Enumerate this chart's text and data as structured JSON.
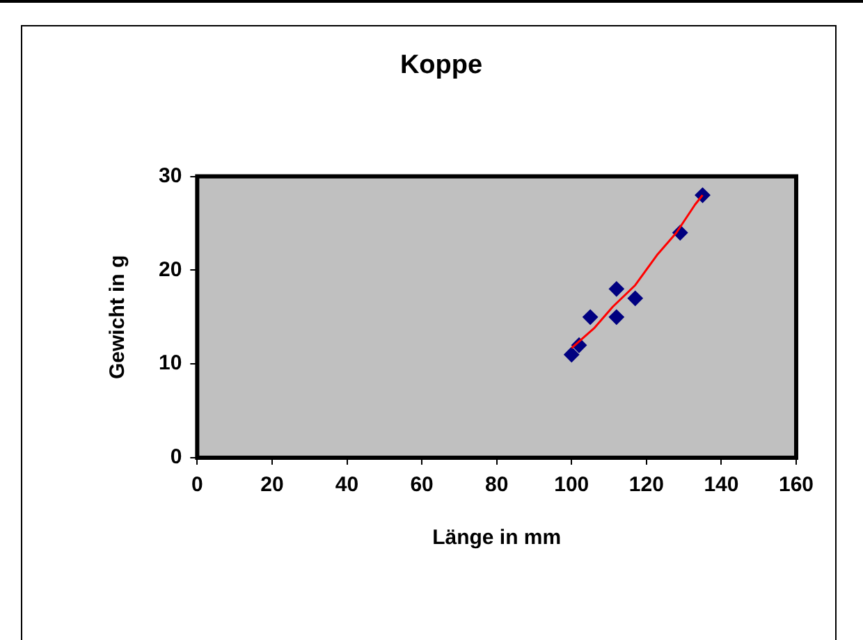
{
  "chart_data": {
    "type": "scatter",
    "title": "Koppe",
    "xlabel": "Länge in mm",
    "ylabel": "Gewicht in g",
    "series": [
      {
        "type": "scatter",
        "color": "#000080",
        "marker": "diamond",
        "x": [
          100,
          102,
          105,
          112,
          112,
          117,
          129,
          135
        ],
        "values": [
          11,
          12,
          15,
          18,
          15,
          17,
          24,
          28
        ]
      },
      {
        "type": "line",
        "color": "#ff0000",
        "marker": "none",
        "x": [
          100,
          106,
          111,
          117,
          123,
          128,
          133,
          135
        ],
        "values": [
          11.7,
          13.8,
          16.1,
          18.4,
          21.7,
          24,
          27,
          28
        ]
      }
    ],
    "xlim": [
      0,
      160
    ],
    "xticks": [
      0,
      20,
      40,
      60,
      80,
      100,
      120,
      140,
      160
    ],
    "ylim": [
      0,
      30
    ],
    "yticks": [
      0,
      10,
      20,
      30
    ],
    "grid": false,
    "legend": false
  }
}
